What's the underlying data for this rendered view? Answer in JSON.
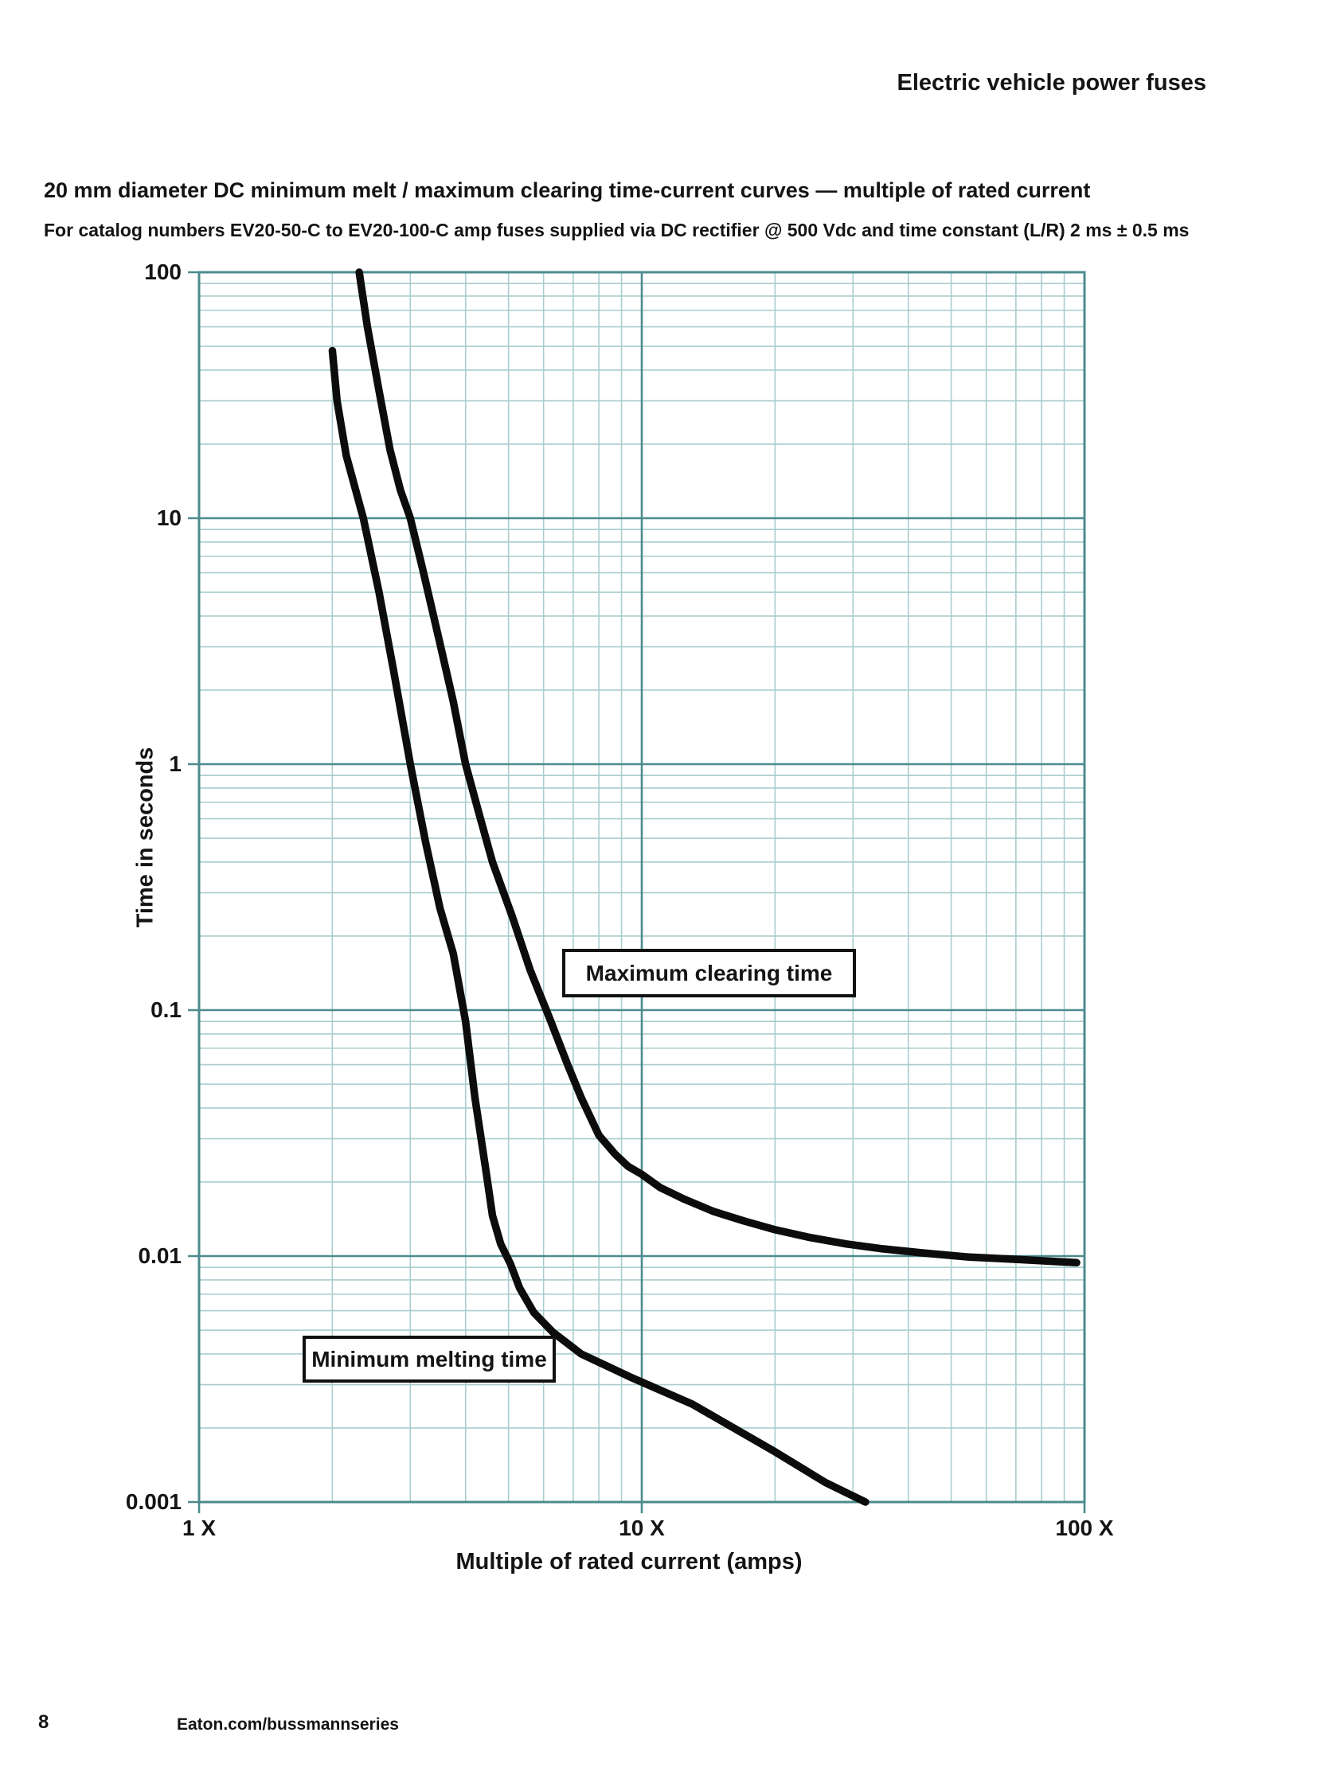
{
  "page": {
    "header": "Electric vehicle power fuses",
    "title": "20 mm diameter DC minimum melt / maximum clearing time-current curves — multiple of rated current",
    "subtitle": "For catalog numbers EV20-50-C to EV20-100-C amp fuses supplied via DC rectifier @ 500 Vdc and time constant (L/R) 2 ms ± 0.5 ms",
    "footer": {
      "page_number": "8",
      "website": "Eaton.com/bussmannseries"
    }
  },
  "chart_data": {
    "type": "line",
    "x_scale": "log",
    "y_scale": "log",
    "xlim": [
      1,
      100
    ],
    "ylim": [
      0.001,
      100
    ],
    "xlabel": "Multiple of rated current (amps)",
    "ylabel": "Time in seconds",
    "grid": "log major + minor, on",
    "legend_position": "inline boxed labels",
    "colors": {
      "grid_major": "#4c8b8e",
      "grid_minor": "#a9cdce",
      "curve": "#0c0c0c",
      "text": "#141414"
    },
    "x_ticks": [
      {
        "value": 1,
        "label": "1 X"
      },
      {
        "value": 10,
        "label": "10 X"
      },
      {
        "value": 100,
        "label": "100 X"
      }
    ],
    "y_ticks": [
      {
        "value": 100,
        "label": "100"
      },
      {
        "value": 10,
        "label": "10"
      },
      {
        "value": 1,
        "label": "1"
      },
      {
        "value": 0.1,
        "label": "0.1"
      },
      {
        "value": 0.01,
        "label": "0.01"
      },
      {
        "value": 0.001,
        "label": "0.001"
      }
    ],
    "annotations": [
      {
        "text": "Maximum clearing time"
      },
      {
        "text": "Minimum melting time"
      }
    ],
    "series": [
      {
        "name": "Minimum melting time",
        "points": [
          [
            2.0,
            48
          ],
          [
            2.05,
            30
          ],
          [
            2.15,
            18
          ],
          [
            2.35,
            10
          ],
          [
            2.55,
            5
          ],
          [
            2.75,
            2.4
          ],
          [
            3.0,
            1.0
          ],
          [
            3.25,
            0.48
          ],
          [
            3.5,
            0.26
          ],
          [
            3.75,
            0.17
          ],
          [
            4.0,
            0.09
          ],
          [
            4.2,
            0.044
          ],
          [
            4.45,
            0.022
          ],
          [
            4.6,
            0.0146
          ],
          [
            4.8,
            0.0112
          ],
          [
            5.05,
            0.0093
          ],
          [
            5.3,
            0.0074
          ],
          [
            5.7,
            0.0059
          ],
          [
            6.3,
            0.0049
          ],
          [
            7.3,
            0.004
          ],
          [
            9.5,
            0.0032
          ],
          [
            13,
            0.0025
          ],
          [
            20,
            0.0016
          ],
          [
            26,
            0.0012
          ],
          [
            32,
            0.001
          ]
        ]
      },
      {
        "name": "Maximum clearing time",
        "points": [
          [
            2.3,
            100
          ],
          [
            2.4,
            60
          ],
          [
            2.55,
            33
          ],
          [
            2.7,
            19
          ],
          [
            2.85,
            13
          ],
          [
            3.0,
            10
          ],
          [
            3.2,
            6.2
          ],
          [
            3.5,
            3.1
          ],
          [
            3.75,
            1.8
          ],
          [
            4.0,
            1.0
          ],
          [
            4.3,
            0.62
          ],
          [
            4.6,
            0.4
          ],
          [
            5.1,
            0.24
          ],
          [
            5.6,
            0.145
          ],
          [
            6.2,
            0.092
          ],
          [
            6.8,
            0.06
          ],
          [
            7.3,
            0.044
          ],
          [
            8.0,
            0.031
          ],
          [
            8.7,
            0.026
          ],
          [
            9.3,
            0.0232
          ],
          [
            10,
            0.0215
          ],
          [
            11,
            0.019
          ],
          [
            12.5,
            0.017
          ],
          [
            14.5,
            0.0152
          ],
          [
            17,
            0.0139
          ],
          [
            20,
            0.0128
          ],
          [
            24,
            0.0119
          ],
          [
            29,
            0.0112
          ],
          [
            35,
            0.0107
          ],
          [
            43,
            0.0103
          ],
          [
            55,
            0.0099
          ],
          [
            70,
            0.0097
          ],
          [
            96,
            0.0094
          ]
        ]
      }
    ]
  }
}
